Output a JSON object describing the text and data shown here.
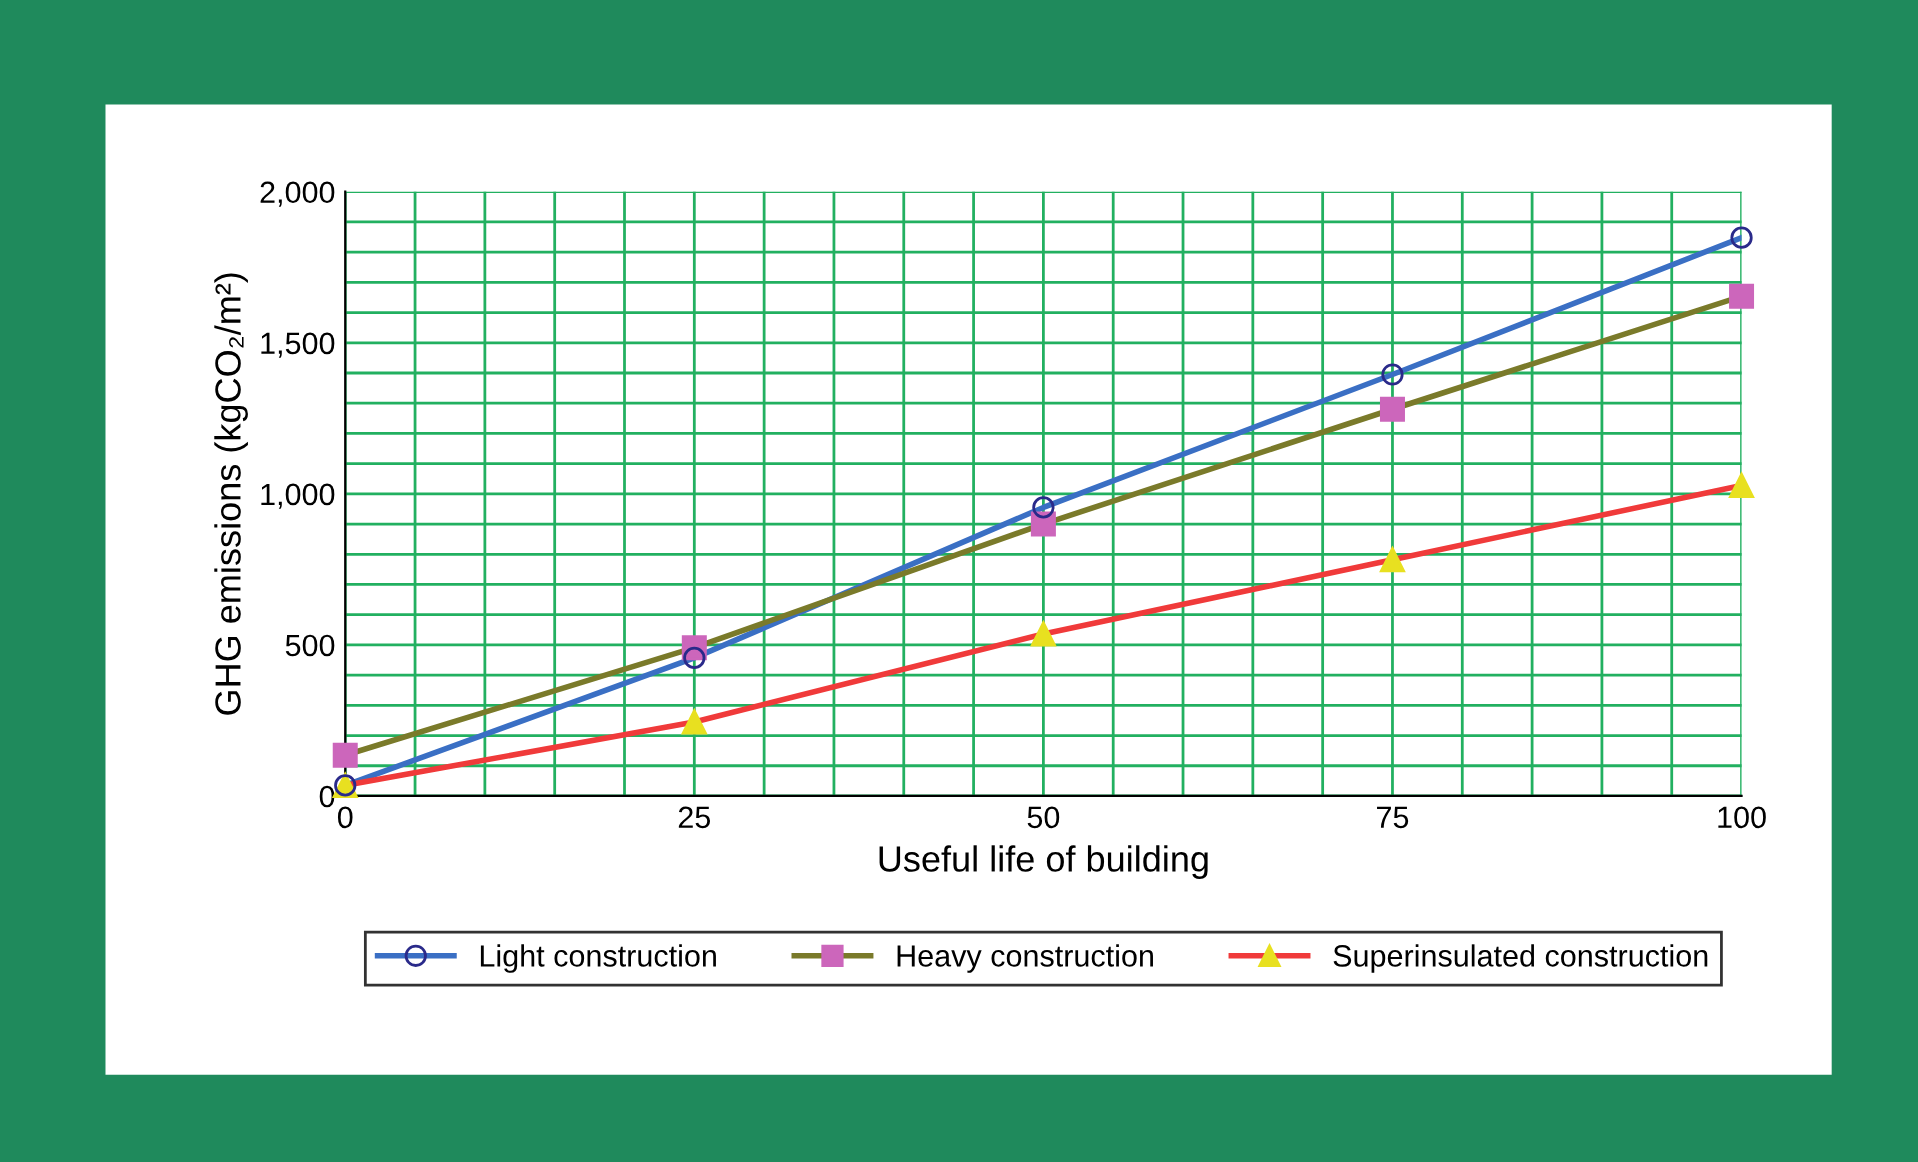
{
  "chart_data": {
    "type": "line",
    "xlabel": "Useful life of building",
    "ylabel": "GHG emissions (kgCO₂/m²)",
    "x": [
      0,
      25,
      50,
      75,
      100
    ],
    "series": [
      {
        "name": "Light construction",
        "color": "#3a6fc4",
        "marker": "circle",
        "colors": [
          "#2a2a8a",
          "#2a2a8a",
          "#2a2a8a",
          "#2a2a8a",
          "#2a2a8a"
        ],
        "values": [
          35,
          457,
          955,
          1395,
          1848
        ]
      },
      {
        "name": "Heavy construction",
        "color": "#7a7a2a",
        "marker": "square",
        "colors": [
          "#cc66bb",
          "#cc66bb",
          "#cc66bb",
          "#cc66bb",
          "#cc66bb"
        ],
        "values": [
          135,
          491,
          900,
          1280,
          1654
        ]
      },
      {
        "name": "Superinsulated construction",
        "color": "#f03a3a",
        "marker": "triangle",
        "colors": [
          "#e8e020",
          "#e8e020",
          "#e8e020",
          "#e8e020",
          "#e8e020"
        ],
        "values": [
          35,
          245,
          536,
          782,
          1028
        ]
      }
    ],
    "xlim": [
      0,
      100
    ],
    "xticks": [
      0,
      {
        "value": 5,
        "label": null
      },
      {
        "value": 10,
        "label": null
      },
      {
        "value": 15,
        "label": null
      },
      {
        "value": 20,
        "label": null
      },
      25,
      {
        "value": 30,
        "label": null
      },
      {
        "value": 35,
        "label": null
      },
      {
        "value": 40,
        "label": null
      },
      {
        "value": 45,
        "label": null
      },
      50,
      {
        "value": 55,
        "label": null
      },
      {
        "value": 60,
        "label": null
      },
      {
        "value": 65,
        "label": null
      },
      {
        "value": 70,
        "label": null
      },
      75,
      {
        "value": 80,
        "label": null
      },
      {
        "value": 85,
        "label": null
      },
      {
        "value": 90,
        "label": null
      },
      {
        "value": 95,
        "label": null
      },
      100
    ],
    "ylim": [
      0,
      2000
    ],
    "yticks": [
      {
        "value": 0,
        "label": "0"
      },
      {
        "value": 100,
        "label": null
      },
      {
        "value": 200,
        "label": null
      },
      {
        "value": 300,
        "label": null
      },
      {
        "value": 400,
        "label": null
      },
      {
        "value": 500,
        "label": "500"
      },
      {
        "value": 600,
        "label": null
      },
      {
        "value": 700,
        "label": null
      },
      {
        "value": 800,
        "label": null
      },
      {
        "value": 900,
        "label": null
      },
      {
        "value": 1000,
        "label": "1,000"
      },
      {
        "value": 1100,
        "label": null
      },
      {
        "value": 1200,
        "label": null
      },
      {
        "value": 1300,
        "label": null
      },
      {
        "value": 1400,
        "label": null
      },
      {
        "value": 1500,
        "label": "1,500"
      },
      {
        "value": 1600,
        "label": null
      },
      {
        "value": 1700,
        "label": null
      },
      {
        "value": 1800,
        "label": null
      },
      {
        "value": 1900,
        "label": null
      },
      {
        "value": 2000,
        "label": "2,000"
      }
    ],
    "grid": true,
    "legend": "bottom"
  }
}
